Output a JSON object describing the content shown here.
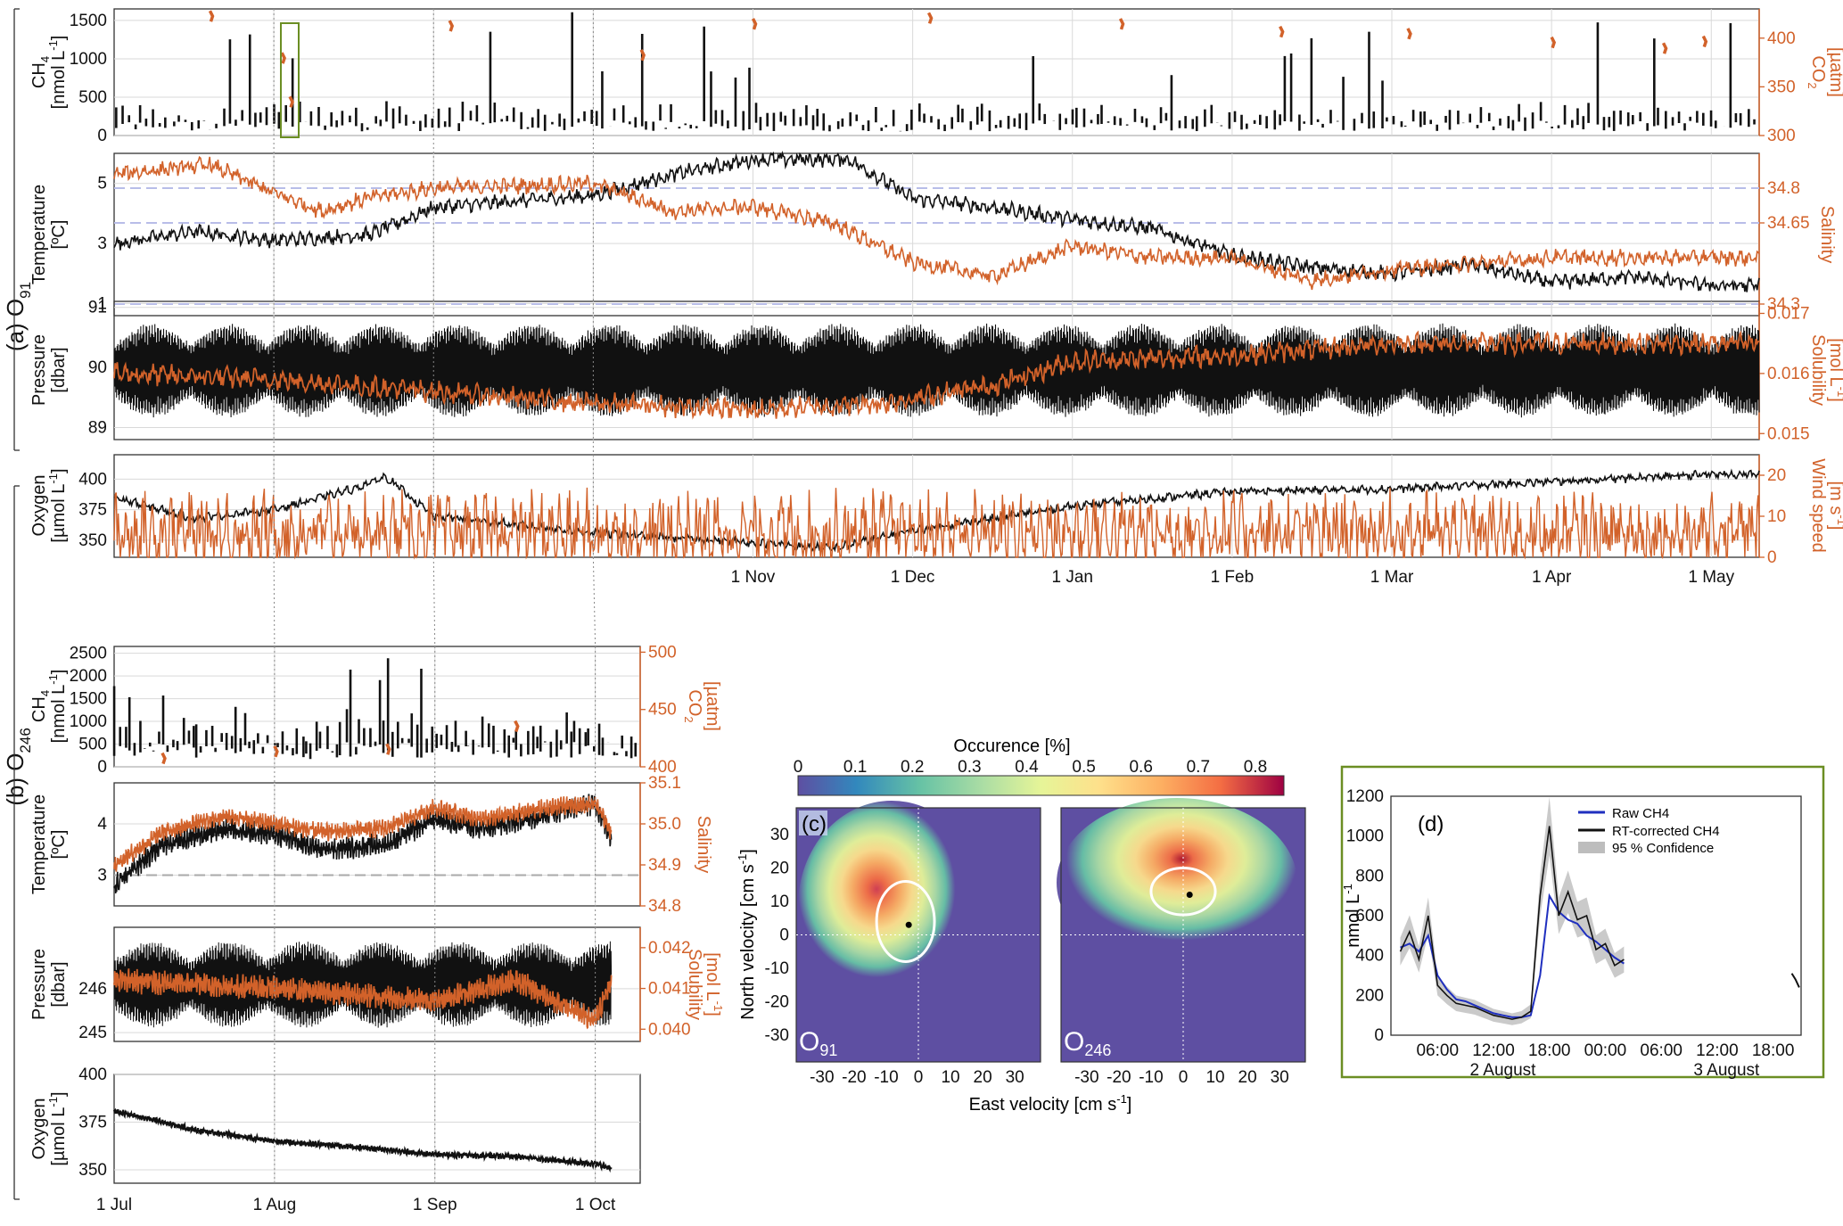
{
  "colors": {
    "black_series": "#111111",
    "orange_series": "#d2622a",
    "raw_ch4": "#1f2fbf",
    "confidence": "#bdbdbd",
    "reference_dash": "#b8bde8",
    "panel_d_border": "#6b8e23"
  },
  "chart_data": [
    {
      "id": "a1",
      "type": "line",
      "panel": "(a) O91",
      "label_main": "(a) O",
      "label_sub": "91",
      "ylabel": "CH4 [nmol L-1]",
      "ylabel_lines": [
        "CH",
        "[nmol L",
        "-1",
        "]"
      ],
      "y2label": "CO2 [µatm]",
      "y2label_lines": [
        "CO",
        "[µatm]"
      ],
      "ylim": [
        0,
        1650
      ],
      "yticks": [
        "0",
        "500",
        "1000",
        "1500"
      ],
      "y2lim": [
        300,
        430
      ],
      "y2ticks": [
        "300",
        "350",
        "400"
      ],
      "series": [
        {
          "name": "CH4",
          "axis": "left",
          "values_desc": "spiky bursts 100-1700 nmol/L"
        },
        {
          "name": "CO2",
          "axis": "right",
          "values_desc": "sparse short segments ~310-420 µatm"
        }
      ]
    },
    {
      "id": "a2",
      "type": "line",
      "ylabel_lines": [
        "Temperature",
        "[ºC]"
      ],
      "y2label_lines": [
        "Salinity"
      ],
      "ylim": [
        0.6,
        6.0
      ],
      "yticks": [
        "1",
        "3",
        "5"
      ],
      "y2lim": [
        34.25,
        34.95
      ],
      "y2ticks": [
        "34.3",
        "34.65",
        "34.8"
      ],
      "series": [
        {
          "name": "Temperature",
          "axis": "left",
          "knots_month_value": [
            [
              0,
              3.0
            ],
            [
              0.5,
              3.4
            ],
            [
              1,
              3.1
            ],
            [
              1.6,
              3.3
            ],
            [
              2,
              4.2
            ],
            [
              3,
              4.6
            ],
            [
              3.5,
              5.3
            ],
            [
              4,
              5.8
            ],
            [
              4.6,
              5.8
            ],
            [
              5,
              4.5
            ],
            [
              5.5,
              4.2
            ],
            [
              6,
              3.8
            ],
            [
              6.5,
              3.5
            ],
            [
              7,
              2.6
            ],
            [
              7.5,
              2.2
            ],
            [
              8,
              2.0
            ],
            [
              8.5,
              2.3
            ],
            [
              9,
              1.7
            ],
            [
              9.5,
              1.9
            ],
            [
              10,
              1.6
            ]
          ]
        },
        {
          "name": "Salinity",
          "axis": "right",
          "knots_month_value": [
            [
              0,
              34.86
            ],
            [
              0.6,
              34.9
            ],
            [
              1,
              34.78
            ],
            [
              1.3,
              34.7
            ],
            [
              1.6,
              34.76
            ],
            [
              2,
              34.8
            ],
            [
              3,
              34.82
            ],
            [
              3.5,
              34.7
            ],
            [
              4,
              34.72
            ],
            [
              4.5,
              34.65
            ],
            [
              5,
              34.48
            ],
            [
              5.5,
              34.42
            ],
            [
              6,
              34.55
            ],
            [
              6.5,
              34.5
            ],
            [
              7,
              34.5
            ],
            [
              7.5,
              34.4
            ],
            [
              8,
              34.45
            ],
            [
              9,
              34.5
            ],
            [
              10,
              34.5
            ]
          ]
        }
      ],
      "reference_lines_salinity": [
        "34.3",
        "34.65",
        "34.8"
      ]
    },
    {
      "id": "a3",
      "type": "line",
      "ylabel_lines": [
        "Pressure",
        "[dbar]"
      ],
      "y2label_lines": [
        "Solubility",
        "[mol L",
        "-1",
        "]"
      ],
      "ylim": [
        88.8,
        91.1
      ],
      "yticks": [
        "89",
        "90",
        "91"
      ],
      "y2lim": [
        0.0149,
        0.0172
      ],
      "y2ticks": [
        "0.015",
        "0.016",
        "0.017"
      ],
      "series": [
        {
          "name": "Pressure",
          "axis": "left",
          "values_desc": "tidal oscillation 89.2-90.9 dbar"
        },
        {
          "name": "Solubility",
          "axis": "right",
          "knots_month_value": [
            [
              0,
              0.016
            ],
            [
              1,
              0.0159
            ],
            [
              2,
              0.0157
            ],
            [
              3,
              0.0155
            ],
            [
              4,
              0.0154
            ],
            [
              4.8,
              0.0155
            ],
            [
              5.5,
              0.0158
            ],
            [
              6,
              0.0162
            ],
            [
              7,
              0.0163
            ],
            [
              8,
              0.0165
            ],
            [
              9,
              0.0165
            ],
            [
              10,
              0.0165
            ]
          ]
        }
      ]
    },
    {
      "id": "a4",
      "type": "line",
      "ylabel_lines": [
        "Oxygen",
        "[µmol L",
        "-1",
        "]"
      ],
      "y2label_lines": [
        "Wind speed",
        "[m s",
        "-1",
        "]"
      ],
      "ylim": [
        336,
        420
      ],
      "yticks": [
        "350",
        "375",
        "400"
      ],
      "y2lim": [
        0,
        25
      ],
      "y2ticks": [
        "0",
        "10",
        "20"
      ],
      "series": [
        {
          "name": "Oxygen",
          "axis": "left",
          "knots_month_value": [
            [
              0,
              385
            ],
            [
              0.5,
              368
            ],
            [
              1,
              375
            ],
            [
              1.5,
              392
            ],
            [
              1.7,
              402
            ],
            [
              2,
              370
            ],
            [
              3,
              356
            ],
            [
              4,
              348
            ],
            [
              4.5,
              343
            ],
            [
              5,
              358
            ],
            [
              5.5,
              368
            ],
            [
              6,
              378
            ],
            [
              7,
              390
            ],
            [
              8,
              392
            ],
            [
              9,
              398
            ],
            [
              10,
              404
            ]
          ]
        },
        {
          "name": "Wind speed",
          "axis": "right",
          "values_desc": "variable 0-21 m/s"
        }
      ],
      "xticks": [
        "1 Nov",
        "1 Dec",
        "1 Jan",
        "1 Feb",
        "1 Mar",
        "1 Apr",
        "1 May"
      ]
    },
    {
      "id": "b1",
      "type": "line",
      "panel": "(b) O246",
      "label_main": "(b) O",
      "label_sub": "246",
      "ylabel_lines": [
        "CH",
        "[nmol L",
        "-1",
        "]"
      ],
      "y2label_lines": [
        "CO",
        "[µatm]"
      ],
      "ylim": [
        0,
        2650
      ],
      "yticks": [
        "0",
        "500",
        "1000",
        "1500",
        "2000",
        "2500"
      ],
      "y2lim": [
        400,
        505
      ],
      "y2ticks": [
        "400",
        "450",
        "500"
      ],
      "series": [
        {
          "name": "CH4",
          "axis": "left"
        },
        {
          "name": "CO2",
          "axis": "right"
        }
      ]
    },
    {
      "id": "b2",
      "type": "line",
      "ylabel_lines": [
        "Temperature",
        "[ºC]"
      ],
      "y2label_lines": [
        "Salinity"
      ],
      "ylim": [
        2.4,
        4.8
      ],
      "yticks": [
        "3",
        "4"
      ],
      "y2lim": [
        34.8,
        35.1
      ],
      "y2ticks": [
        "34.8",
        "34.9",
        "35.0",
        "35.1"
      ],
      "series": [
        {
          "name": "Temperature",
          "axis": "left",
          "knots_month_value": [
            [
              0,
              2.8
            ],
            [
              0.3,
              3.6
            ],
            [
              0.7,
              3.9
            ],
            [
              1,
              3.8
            ],
            [
              1.3,
              3.5
            ],
            [
              1.7,
              3.6
            ],
            [
              2,
              4.1
            ],
            [
              2.3,
              3.9
            ],
            [
              2.7,
              4.2
            ],
            [
              3,
              4.4
            ],
            [
              3.1,
              3.7
            ]
          ]
        },
        {
          "name": "Salinity",
          "axis": "right",
          "knots_month_value": [
            [
              0,
              34.9
            ],
            [
              0.3,
              34.98
            ],
            [
              0.7,
              35.02
            ],
            [
              1,
              35.0
            ],
            [
              1.3,
              34.98
            ],
            [
              1.7,
              34.99
            ],
            [
              2,
              35.04
            ],
            [
              2.3,
              35.01
            ],
            [
              2.7,
              35.04
            ],
            [
              3,
              35.05
            ],
            [
              3.1,
              34.98
            ]
          ]
        }
      ],
      "reference_lines_temperature": [
        "3"
      ]
    },
    {
      "id": "b3",
      "type": "line",
      "ylabel_lines": [
        "Pressure",
        "[dbar]"
      ],
      "y2label_lines": [
        "Solubility",
        "[mol L",
        "-1",
        "]"
      ],
      "ylim": [
        244.8,
        247.4
      ],
      "yticks": [
        "245",
        "246"
      ],
      "y2lim": [
        0.0397,
        0.0425
      ],
      "y2ticks": [
        "0.040",
        "0.041",
        "0.042"
      ],
      "series": [
        {
          "name": "Pressure",
          "axis": "left"
        },
        {
          "name": "Solubility",
          "axis": "right"
        }
      ]
    },
    {
      "id": "b4",
      "type": "line",
      "ylabel_lines": [
        "Oxygen",
        "[µmol L",
        "-1",
        "]"
      ],
      "ylim": [
        343,
        400
      ],
      "yticks": [
        "350",
        "375",
        "400"
      ],
      "series": [
        {
          "name": "Oxygen",
          "axis": "left",
          "knots_month_value": [
            [
              0,
              381
            ],
            [
              0.5,
              371
            ],
            [
              1,
              365
            ],
            [
              1.5,
              362
            ],
            [
              2,
              358
            ],
            [
              2.5,
              357
            ],
            [
              3,
              353
            ],
            [
              3.1,
              351
            ]
          ]
        }
      ],
      "xticks": [
        "1 Jul",
        "1 Aug",
        "1 Sep",
        "1 Oct"
      ]
    },
    {
      "id": "c",
      "type": "heatmap",
      "panel": "(c)",
      "colorbar_title": "Occurence [%]",
      "colorbar_ticks": [
        "0",
        "0.1",
        "0.2",
        "0.3",
        "0.4",
        "0.5",
        "0.6",
        "0.7",
        "0.8"
      ],
      "colorbar_range": [
        0,
        0.85
      ],
      "xlabel": "East velocity [cm s-1]",
      "xlabel_main": "East velocity [cm s",
      "xlabel_sup": "-1",
      "xlabel_end": "]",
      "ylabel": "North velocity [cm s-1]",
      "ylabel_main": "North velocity [cm s",
      "ylabel_sup": "-1",
      "ylabel_end": "]",
      "xticks": [
        "-30",
        "-20",
        "-10",
        "0",
        "10",
        "20",
        "30"
      ],
      "yticks": [
        "30",
        "20",
        "10",
        "0",
        "-10",
        "-20",
        "-30"
      ],
      "xlim": [
        -38,
        38
      ],
      "ylim": [
        -38,
        38
      ],
      "maps": [
        {
          "name": "O91",
          "label_main": "O",
          "label_sub": "91",
          "mean": [
            -3,
            3
          ],
          "ellipse_center": [
            -4,
            4
          ],
          "ellipse_radii": [
            9,
            12
          ]
        },
        {
          "name": "O246",
          "label_main": "O",
          "label_sub": "246",
          "mean": [
            2,
            12
          ],
          "ellipse_center": [
            0,
            13
          ],
          "ellipse_radii": [
            10,
            7
          ]
        }
      ]
    },
    {
      "id": "d",
      "type": "line",
      "panel": "(d)",
      "ylabel": "nmol L-1",
      "ylabel_main": "nmol L",
      "ylabel_sup": "-1",
      "ylim": [
        0,
        1200
      ],
      "yticks": [
        "0",
        "200",
        "400",
        "600",
        "800",
        "1000",
        "1200"
      ],
      "xticks": [
        "06:00",
        "12:00",
        "18:00",
        "00:00",
        "06:00",
        "12:00",
        "18:00"
      ],
      "date_labels": [
        "2 August",
        "3 August"
      ],
      "legend": [
        "Raw CH4",
        "RT-corrected CH4",
        "95 % Confidence"
      ],
      "series": [
        {
          "name": "Raw CH4",
          "x_hours": [
            1,
            2,
            3,
            4,
            5,
            6,
            7,
            8,
            9,
            10,
            11,
            12,
            13,
            14,
            15,
            16,
            17,
            18,
            19,
            20,
            21,
            22,
            23,
            24,
            25
          ],
          "values": [
            440,
            460,
            420,
            500,
            300,
            230,
            180,
            170,
            150,
            130,
            110,
            100,
            90,
            90,
            100,
            300,
            700,
            620,
            580,
            560,
            500,
            470,
            430,
            390,
            360
          ]
        },
        {
          "name": "RT-corrected CH4",
          "x_hours": [
            1,
            2,
            3,
            4,
            5,
            6,
            7,
            8,
            9,
            10,
            11,
            12,
            13,
            14,
            15,
            16,
            17,
            18,
            19,
            20,
            21,
            22,
            23,
            24,
            25
          ],
          "values": [
            420,
            520,
            380,
            600,
            250,
            200,
            160,
            150,
            140,
            120,
            100,
            90,
            80,
            90,
            120,
            700,
            1050,
            600,
            720,
            580,
            600,
            430,
            460,
            350,
            380
          ]
        }
      ]
    }
  ]
}
